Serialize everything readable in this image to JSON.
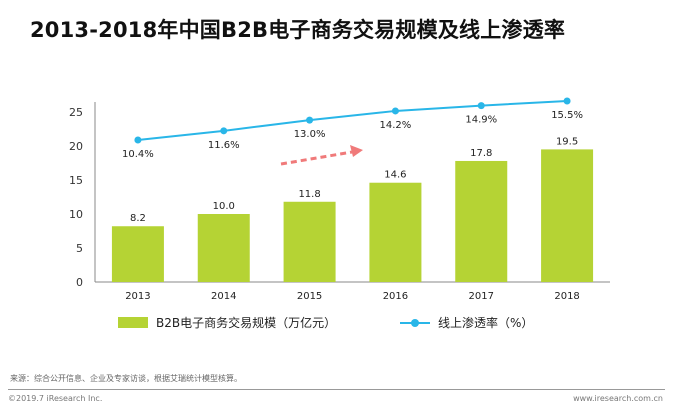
{
  "title": "2013-2018年中国B2B电子商务交易规模及线上渗透率",
  "source": "来源：综合公开信息、企业及专家访谈，根据艾瑞统计模型核算。",
  "copyright": "©2019.7 iResearch Inc.",
  "website": "www.iresearch.com.cn",
  "colors": {
    "bar": "#b5d334",
    "line": "#29b6e8",
    "arrow": "#f07a7a",
    "axis": "#888888"
  },
  "legend": {
    "bar_label": "B2B电子商务交易规模（万亿元）",
    "line_label": "线上渗透率（%）"
  },
  "chart_data": {
    "type": "bar",
    "categories": [
      "2013",
      "2014",
      "2015",
      "2016",
      "2017",
      "2018"
    ],
    "ylim": [
      0,
      25
    ],
    "yticks": [
      0,
      5,
      10,
      15,
      20,
      25
    ],
    "series": [
      {
        "name": "B2B电子商务交易规模（万亿元）",
        "type": "bar",
        "values": [
          8.2,
          10.0,
          11.8,
          14.6,
          17.8,
          19.5
        ],
        "labels": [
          "8.2",
          "10.0",
          "11.8",
          "14.6",
          "17.8",
          "19.5"
        ]
      },
      {
        "name": "线上渗透率（%）",
        "type": "line",
        "values": [
          10.4,
          11.6,
          13.0,
          14.2,
          14.9,
          15.5
        ],
        "labels": [
          "10.4%",
          "11.6%",
          "13.0%",
          "14.2%",
          "14.9%",
          "15.5%"
        ]
      }
    ],
    "annotations": [
      "upward trend arrow (dashed)"
    ]
  }
}
